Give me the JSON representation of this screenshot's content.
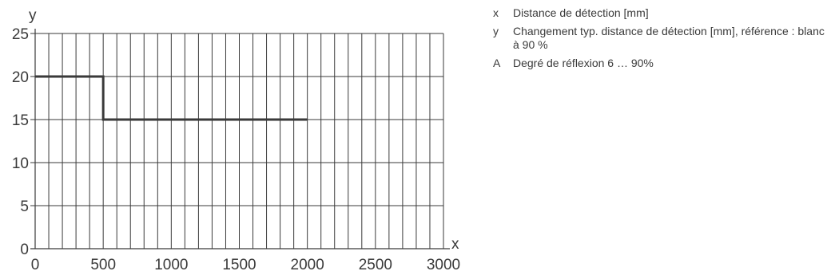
{
  "chart_data": {
    "type": "line",
    "xlabel": "x",
    "ylabel": "y",
    "xlim": [
      0,
      3000
    ],
    "ylim": [
      0,
      25
    ],
    "x_ticks": [
      0,
      500,
      1000,
      1500,
      2000,
      2500,
      3000
    ],
    "y_ticks": [
      0,
      5,
      10,
      15,
      20,
      25
    ],
    "grid": true,
    "series": [
      {
        "x": [
          0,
          500,
          500,
          2000
        ],
        "y": [
          20,
          20,
          15,
          15
        ]
      }
    ]
  },
  "legend": [
    {
      "key": "x",
      "text": "Distance de détection [mm]"
    },
    {
      "key": "y",
      "text": "Changement typ. distance de détection [mm], référence : blanc à 90 %"
    },
    {
      "key": "A",
      "text": "Degré de réflexion 6 … 90%"
    }
  ],
  "colors": {
    "axis": "#3a3a3a",
    "grid": "#3a3a3a",
    "line": "#3a3a3a"
  }
}
